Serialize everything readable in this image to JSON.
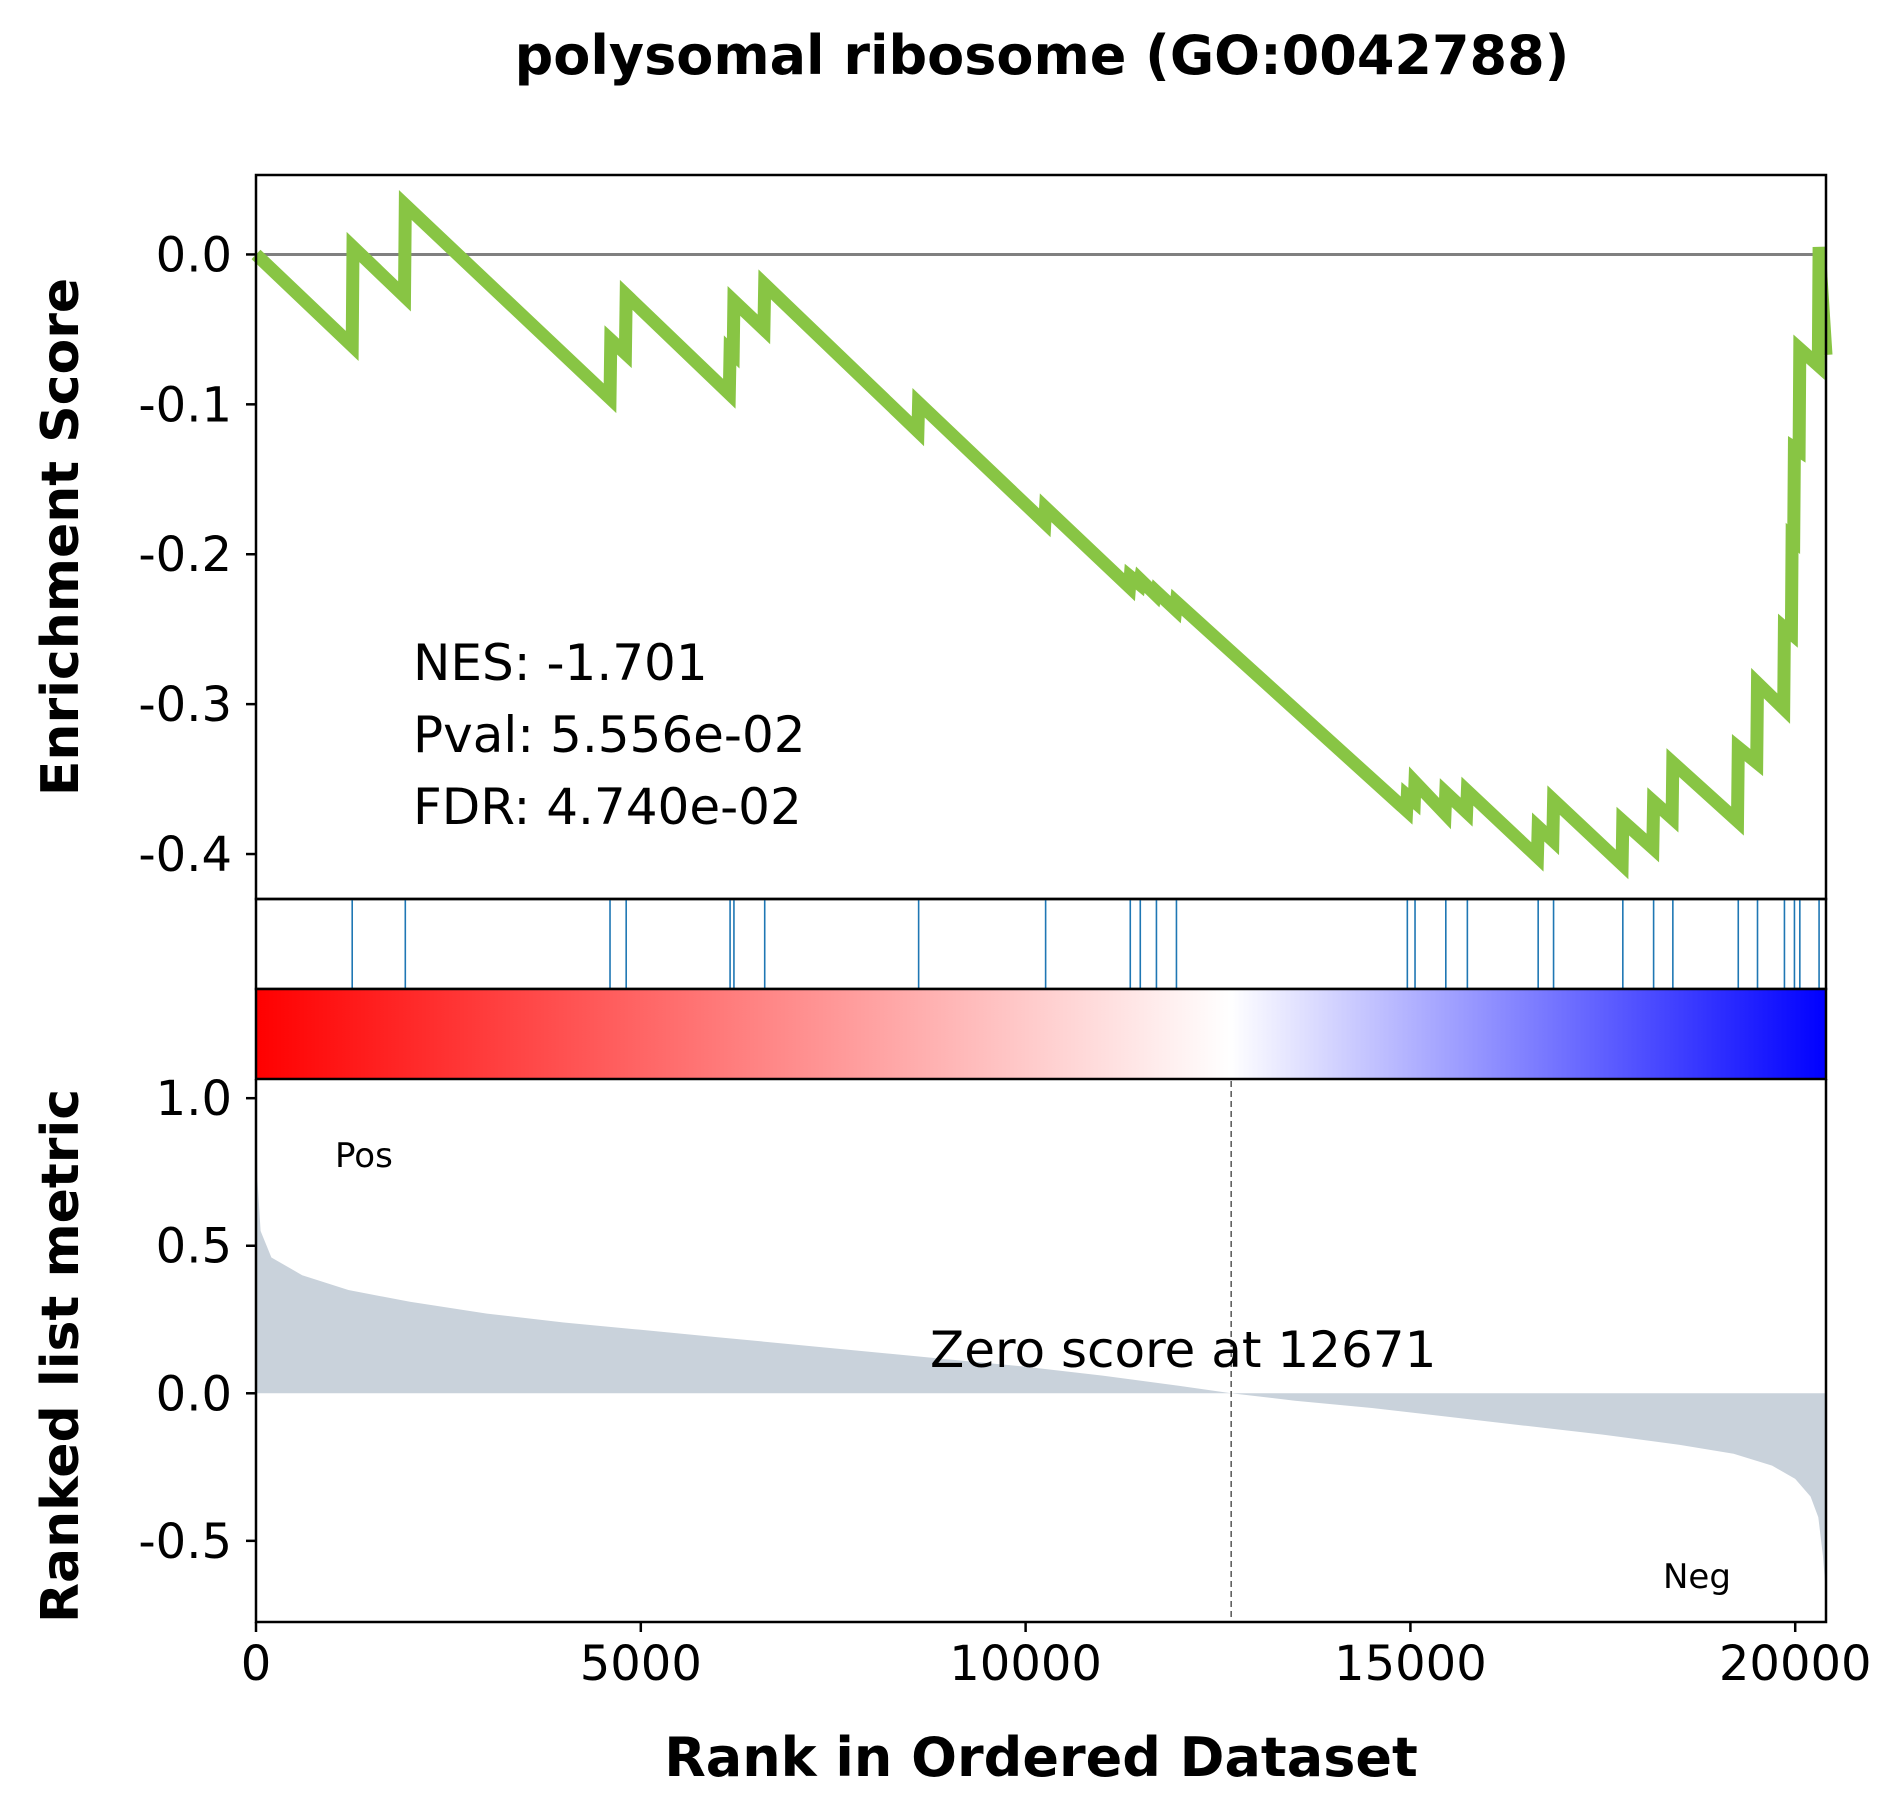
{
  "chart_data": {
    "type": "line",
    "title": "polysomal ribosome (GO:0042788)",
    "xlabel": "Rank in Ordered Dataset",
    "xlim": [
      0,
      20400
    ],
    "x_ticks": [
      "0",
      "5000",
      "10000",
      "15000",
      "20000"
    ],
    "x_tick_values": [
      0,
      5000,
      10000,
      15000,
      20000
    ],
    "colors": {
      "es_line": "#88c544",
      "baseline": "#808080",
      "hit_line": "#1f77b4",
      "metric_fill": "#c9d2db",
      "pos_label": "#ff0000",
      "neg_label": "#0000ff",
      "heat_start": "#ff0000",
      "heat_mid": "#ffffff",
      "heat_end": "#0000ff"
    },
    "es_panel": {
      "ylabel": "Enrichment Score",
      "ylim": [
        -0.43,
        0.053
      ],
      "y_ticks": [
        "0.0",
        "-0.1",
        "-0.2",
        "-0.3",
        "-0.4"
      ],
      "y_tick_values": [
        0.0,
        -0.1,
        -0.2,
        -0.3,
        -0.4
      ],
      "stats": {
        "nes": "NES: -1.701",
        "pval": "Pval: 5.556e-02",
        "fdr": "FDR: 4.740e-02"
      },
      "es_curve": [
        [
          0,
          0.0
        ],
        [
          1250,
          -0.061
        ],
        [
          1260,
          0.005
        ],
        [
          1930,
          -0.028
        ],
        [
          1940,
          0.033
        ],
        [
          4600,
          -0.096
        ],
        [
          4610,
          -0.057
        ],
        [
          4800,
          -0.066
        ],
        [
          4810,
          -0.027
        ],
        [
          6150,
          -0.093
        ],
        [
          6160,
          -0.064
        ],
        [
          6200,
          -0.066
        ],
        [
          6210,
          -0.031
        ],
        [
          6600,
          -0.05
        ],
        [
          6610,
          -0.02
        ],
        [
          8600,
          -0.118
        ],
        [
          8610,
          -0.099
        ],
        [
          10250,
          -0.179
        ],
        [
          10260,
          -0.169
        ],
        [
          11350,
          -0.222
        ],
        [
          11360,
          -0.215
        ],
        [
          11480,
          -0.22
        ],
        [
          11490,
          -0.217
        ],
        [
          11690,
          -0.227
        ],
        [
          11700,
          -0.225
        ],
        [
          11950,
          -0.237
        ],
        [
          11960,
          -0.232
        ],
        [
          14950,
          -0.371
        ],
        [
          14960,
          -0.361
        ],
        [
          15050,
          -0.365
        ],
        [
          15060,
          -0.352
        ],
        [
          15450,
          -0.373
        ],
        [
          15460,
          -0.359
        ],
        [
          15730,
          -0.372
        ],
        [
          15740,
          -0.358
        ],
        [
          16650,
          -0.402
        ],
        [
          16660,
          -0.382
        ],
        [
          16850,
          -0.391
        ],
        [
          16860,
          -0.364
        ],
        [
          17750,
          -0.407
        ],
        [
          17760,
          -0.378
        ],
        [
          18150,
          -0.396
        ],
        [
          18160,
          -0.365
        ],
        [
          18400,
          -0.376
        ],
        [
          18410,
          -0.339
        ],
        [
          19250,
          -0.378
        ],
        [
          19260,
          -0.329
        ],
        [
          19500,
          -0.339
        ],
        [
          19510,
          -0.286
        ],
        [
          19850,
          -0.303
        ],
        [
          19860,
          -0.249
        ],
        [
          19950,
          -0.253
        ],
        [
          19960,
          -0.189
        ],
        [
          19980,
          -0.19
        ],
        [
          19990,
          -0.129
        ],
        [
          20050,
          -0.131
        ],
        [
          20060,
          -0.063
        ],
        [
          20300,
          -0.074
        ],
        [
          20310,
          0.005
        ],
        [
          20400,
          -0.067
        ]
      ]
    },
    "hits": [
      1250,
      1940,
      4600,
      4810,
      6160,
      6210,
      6610,
      8610,
      10260,
      11360,
      11490,
      11700,
      11960,
      14960,
      15060,
      15460,
      15740,
      16660,
      16860,
      17760,
      18160,
      18410,
      19260,
      19510,
      19860,
      19990,
      20060,
      20310
    ],
    "metric_panel": {
      "ylabel": "Ranked list metric",
      "ylim": [
        -0.775,
        1.065
      ],
      "y_ticks": [
        "1.0",
        "0.5",
        "0.0",
        "-0.5"
      ],
      "y_tick_values": [
        1.0,
        0.5,
        0.0,
        -0.5
      ],
      "zero_cross": 12671,
      "zero_label": "Zero score at 12671",
      "pos_label": "Pos",
      "neg_label": "Neg",
      "metric_curve": [
        [
          0,
          1.04
        ],
        [
          20,
          0.72
        ],
        [
          60,
          0.55
        ],
        [
          200,
          0.46
        ],
        [
          600,
          0.4
        ],
        [
          1200,
          0.35
        ],
        [
          2000,
          0.31
        ],
        [
          3000,
          0.27
        ],
        [
          4000,
          0.24
        ],
        [
          5000,
          0.215
        ],
        [
          6000,
          0.19
        ],
        [
          7000,
          0.165
        ],
        [
          8000,
          0.14
        ],
        [
          9000,
          0.115
        ],
        [
          10000,
          0.09
        ],
        [
          11000,
          0.06
        ],
        [
          12000,
          0.025
        ],
        [
          12671,
          0.0
        ],
        [
          13500,
          -0.025
        ],
        [
          14500,
          -0.05
        ],
        [
          15500,
          -0.08
        ],
        [
          16500,
          -0.11
        ],
        [
          17500,
          -0.14
        ],
        [
          18500,
          -0.175
        ],
        [
          19200,
          -0.205
        ],
        [
          19700,
          -0.245
        ],
        [
          20000,
          -0.29
        ],
        [
          20200,
          -0.35
        ],
        [
          20300,
          -0.42
        ],
        [
          20360,
          -0.55
        ],
        [
          20400,
          -0.68
        ]
      ]
    }
  }
}
